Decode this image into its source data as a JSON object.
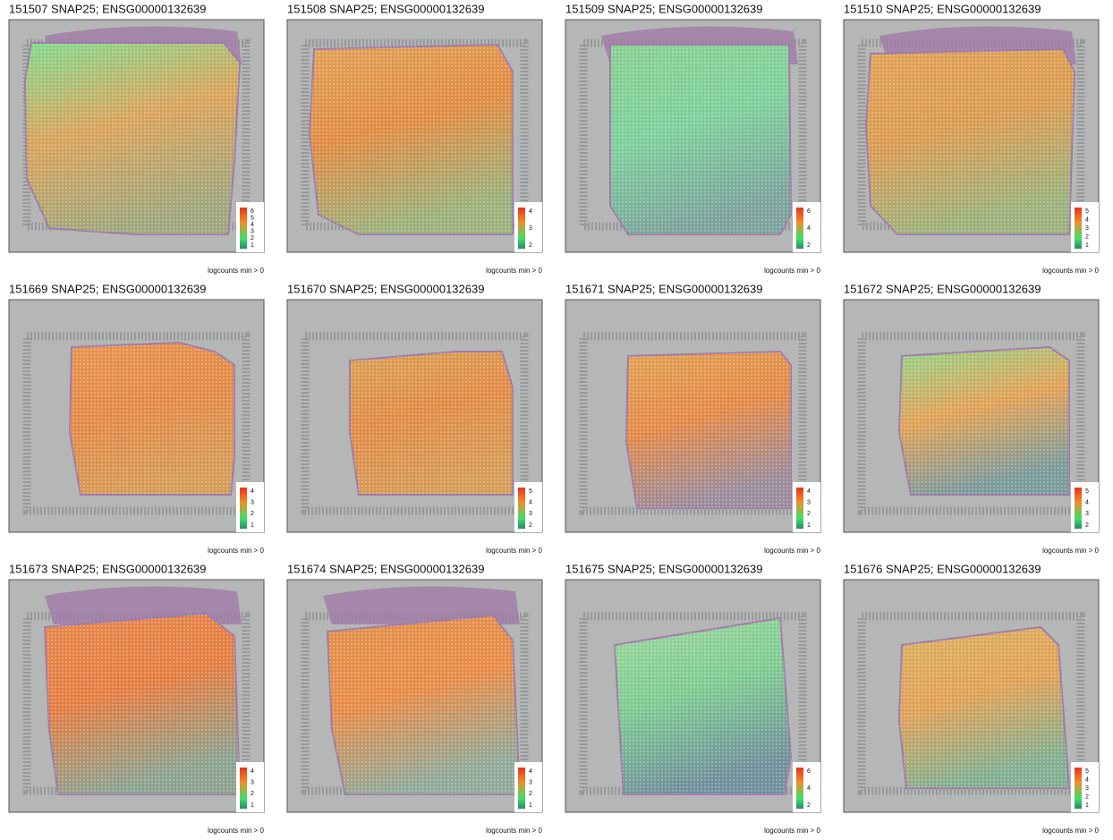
{
  "panels": [
    {
      "title": "151507 SNAP25; ENSG00000132639",
      "legend_ticks": [
        6,
        5,
        4,
        3,
        2,
        1
      ],
      "caption": "logcounts min > 0"
    },
    {
      "title": "151508 SNAP25; ENSG00000132639",
      "legend_ticks": [
        4,
        3,
        2
      ],
      "caption": "logcounts min > 0"
    },
    {
      "title": "151509 SNAP25; ENSG00000132639",
      "legend_ticks": [
        6,
        4,
        2
      ],
      "caption": "logcounts min > 0"
    },
    {
      "title": "151510 SNAP25; ENSG00000132639",
      "legend_ticks": [
        5,
        4,
        3,
        2,
        1
      ],
      "caption": "logcounts min > 0"
    },
    {
      "title": "151669 SNAP25; ENSG00000132639",
      "legend_ticks": [
        4,
        3,
        2,
        1
      ],
      "caption": "logcounts min > 0"
    },
    {
      "title": "151670 SNAP25; ENSG00000132639",
      "legend_ticks": [
        5,
        4,
        3,
        2
      ],
      "caption": "logcounts min > 0"
    },
    {
      "title": "151671 SNAP25; ENSG00000132639",
      "legend_ticks": [
        4,
        3,
        2,
        1
      ],
      "caption": "logcounts min > 0"
    },
    {
      "title": "151672 SNAP25; ENSG00000132639",
      "legend_ticks": [
        5,
        4,
        3,
        2
      ],
      "caption": "logcounts min > 0"
    },
    {
      "title": "151673 SNAP25; ENSG00000132639",
      "legend_ticks": [
        4,
        3,
        2,
        1
      ],
      "caption": "logcounts min > 0"
    },
    {
      "title": "151674 SNAP25; ENSG00000132639",
      "legend_ticks": [
        4,
        3,
        2,
        1
      ],
      "caption": "logcounts min > 0"
    },
    {
      "title": "151675 SNAP25; ENSG00000132639",
      "legend_ticks": [
        6,
        4,
        2
      ],
      "caption": "logcounts min > 0"
    },
    {
      "title": "151676 SNAP25; ENSG00000132639",
      "legend_ticks": [
        5,
        4,
        3,
        2,
        1
      ],
      "caption": "logcounts min > 0"
    }
  ]
}
